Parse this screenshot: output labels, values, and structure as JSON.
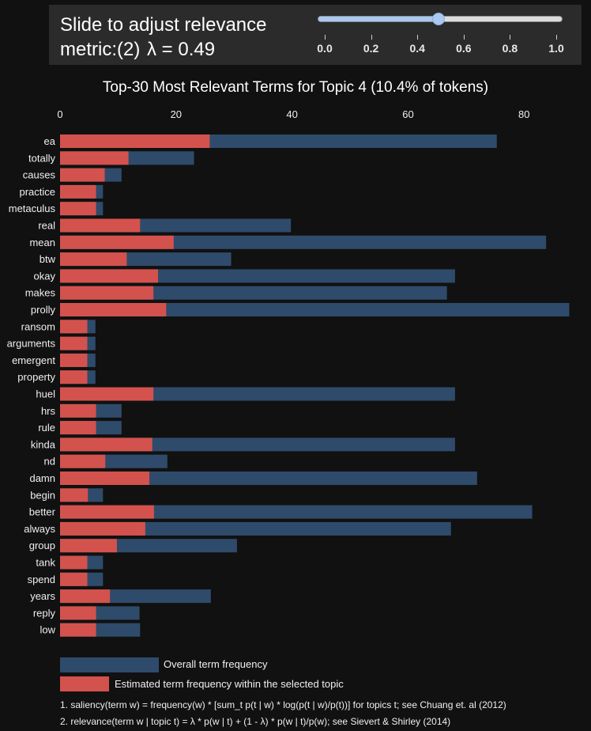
{
  "slider": {
    "title_text": "Slide to adjust relevance metric:(2)",
    "lambda_text": "λ = 0.49",
    "value": 0.49,
    "min": 0,
    "max": 1,
    "ticks": [
      "0.0",
      "0.2",
      "0.4",
      "0.6",
      "0.8",
      "1.0"
    ]
  },
  "chart_data": {
    "type": "bar",
    "orientation": "horizontal",
    "title": "Top-30 Most Relevant Terms for Topic 4 (10.4% of tokens)",
    "xlim": [
      0,
      88
    ],
    "x_ticks": [
      "0",
      "20",
      "40",
      "60",
      "80"
    ],
    "categories": [
      "ea",
      "totally",
      "causes",
      "practice",
      "metaculus",
      "real",
      "mean",
      "btw",
      "okay",
      "makes",
      "prolly",
      "ransom",
      "arguments",
      "emergent",
      "property",
      "huel",
      "hrs",
      "rule",
      "kinda",
      "nd",
      "damn",
      "begin",
      "better",
      "always",
      "group",
      "tank",
      "spend",
      "years",
      "reply",
      "low"
    ],
    "series": [
      {
        "name": "Overall term frequency",
        "color": "#2f4b6b",
        "values": [
          75.3,
          23.1,
          10.6,
          7.4,
          7.4,
          39.8,
          83.8,
          29.5,
          68.1,
          66.7,
          87.8,
          6.1,
          6.1,
          6.1,
          6.1,
          68.1,
          10.6,
          10.6,
          68.1,
          18.5,
          71.9,
          7.4,
          81.4,
          67.4,
          30.5,
          7.4,
          7.4,
          26,
          13.7,
          13.8
        ]
      },
      {
        "name": "Estimated term frequency within the selected topic",
        "color": "#d4524d",
        "values": [
          25.8,
          11.8,
          7.7,
          6.2,
          6.2,
          13.8,
          19.6,
          11.5,
          16.9,
          16.1,
          18.3,
          4.7,
          4.7,
          4.7,
          4.7,
          16.1,
          6.2,
          6.2,
          15.9,
          7.8,
          15.4,
          4.8,
          16.2,
          14.7,
          9.8,
          4.7,
          4.7,
          8.6,
          6.2,
          6.2
        ]
      }
    ],
    "legend_position": "bottom-left"
  },
  "footnotes": [
    "1. saliency(term w) = frequency(w) * [sum_t p(t | w) * log(p(t | w)/p(t))] for topics t; see Chuang et. al (2012)",
    "2. relevance(term w | topic t) = λ * p(w | t) + (1 - λ) * p(w | t)/p(w); see Sievert & Shirley (2014)"
  ]
}
